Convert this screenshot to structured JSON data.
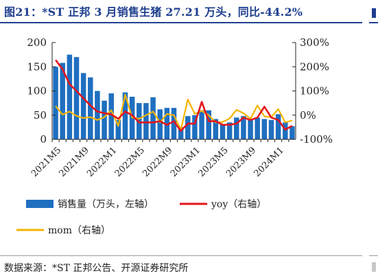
{
  "header": {
    "title": "图21：*ST 正邦 3 月销售生猪 27.21 万头，同比-44.2%"
  },
  "footer": {
    "source": "数据来源：*ST 正邦公告、开源证券研究所"
  },
  "chart_data": {
    "type": "bar",
    "categories": [
      "2021M5",
      "2021M6",
      "2021M7",
      "2021M8",
      "2021M9",
      "2021M10",
      "2021M11",
      "2021M12",
      "2022M1",
      "2022M2",
      "2022M3",
      "2022M4",
      "2022M5",
      "2022M6",
      "2022M7",
      "2022M8",
      "2022M9",
      "2022M10",
      "2022M11",
      "2022M12",
      "2023M1",
      "2023M2",
      "2023M3",
      "2023M4",
      "2023M5",
      "2023M6",
      "2023M7",
      "2023M8",
      "2023M9",
      "2023M10",
      "2023M11",
      "2023M12",
      "2024M1",
      "2024M2",
      "2024M3"
    ],
    "x_tick_labels": [
      "2021M5",
      "2021M9",
      "2022M1",
      "2022M5",
      "2022M9",
      "2023M1",
      "2023M5",
      "2023M9",
      "2024M1"
    ],
    "series": [
      {
        "name": "销售量（万头，左轴）",
        "axis": "left",
        "kind": "bar",
        "color": "#1f6fc0",
        "values": [
          150,
          158,
          175,
          170,
          137,
          128,
          100,
          80,
          95,
          40,
          97,
          88,
          75,
          75,
          87,
          62,
          65,
          65,
          25,
          48,
          50,
          60,
          60,
          42,
          30,
          35,
          45,
          48,
          40,
          45,
          42,
          40,
          52,
          35,
          27.21
        ]
      },
      {
        "name": "yoy（右轴）",
        "axis": "right",
        "kind": "line",
        "color": "#e3131a",
        "values": [
          228,
          190,
          128,
          100,
          70,
          40,
          15,
          8,
          3,
          -15,
          15,
          0,
          -30,
          -30,
          -30,
          -25,
          -40,
          -25,
          -65,
          -35,
          -35,
          55,
          -25,
          -25,
          -40,
          -40,
          -35,
          -10,
          -20,
          -10,
          35,
          -10,
          -20,
          -60,
          -44.2
        ]
      },
      {
        "name": "mom（右轴）",
        "axis": "right",
        "kind": "line",
        "color": "#f5b400",
        "values": [
          38,
          2,
          15,
          -3,
          -12,
          -8,
          -20,
          -8,
          20,
          -45,
          85,
          -10,
          -15,
          0,
          15,
          -30,
          5,
          0,
          -60,
          65,
          5,
          18,
          0,
          -30,
          -28,
          -14,
          22,
          8,
          -15,
          40,
          -5,
          -8,
          25,
          -30,
          -22
        ]
      }
    ],
    "ylim_left": [
      0,
      200
    ],
    "yticks_left": [
      0,
      50,
      100,
      150,
      200
    ],
    "ylim_right": [
      -100,
      300
    ],
    "yticks_right": [
      "-100%",
      "0%",
      "100%",
      "200%",
      "300%"
    ],
    "grid": false,
    "legend_position": "bottom"
  }
}
